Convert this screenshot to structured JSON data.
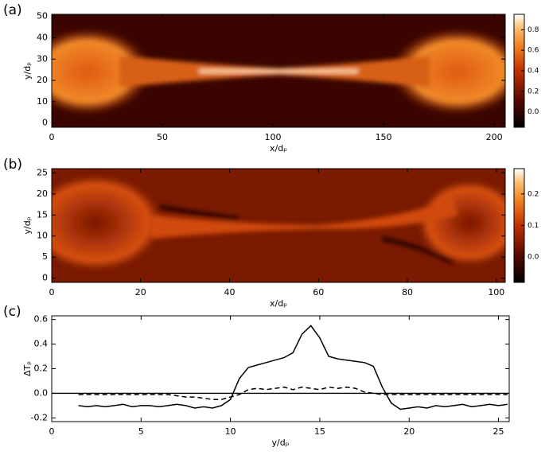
{
  "chart_data": [
    {
      "type": "heatmap",
      "panel_label": "(a)",
      "xlabel": "x/dₚ",
      "ylabel": "y/dₚ",
      "xlim": [
        0,
        205
      ],
      "xticks": [
        0,
        50,
        100,
        150,
        200
      ],
      "ylim": [
        -2,
        51
      ],
      "yticks": [
        0,
        10,
        20,
        30,
        40,
        50
      ],
      "colorbar": {
        "lim": [
          -0.15,
          0.95
        ],
        "ticks": [
          {
            "value": 0,
            "label": "0.0"
          },
          {
            "value": 0.2,
            "label": "0.2"
          },
          {
            "value": 0.4,
            "label": "0.4"
          },
          {
            "value": 0.6,
            "label": "0.6"
          },
          {
            "value": 0.8,
            "label": "0.8"
          }
        ]
      }
    },
    {
      "type": "heatmap",
      "panel_label": "(b)",
      "xlabel": "x/dₚ",
      "ylabel": "y/dₚ",
      "xlim": [
        0,
        102
      ],
      "xticks": [
        0,
        20,
        40,
        60,
        80,
        100
      ],
      "ylim": [
        -1,
        26
      ],
      "yticks": [
        0,
        5,
        10,
        15,
        20,
        25
      ],
      "colorbar": {
        "lim": [
          -0.08,
          0.28
        ],
        "ticks": [
          {
            "value": 0,
            "label": "0.0"
          },
          {
            "value": 0.1,
            "label": "0.1"
          },
          {
            "value": 0.2,
            "label": "0.2"
          }
        ]
      }
    },
    {
      "type": "line",
      "panel_label": "(c)",
      "xlabel": "y/dₚ",
      "ylabel": "ΔTₚ",
      "xlim": [
        0,
        25.6
      ],
      "xticks": [
        0,
        5,
        10,
        15,
        20,
        25
      ],
      "ylim": [
        -0.23,
        0.63
      ],
      "yticks": [
        {
          "value": -0.2,
          "label": "-0.2"
        },
        {
          "value": 0,
          "label": "0.0"
        },
        {
          "value": 0.2,
          "label": "0.2"
        },
        {
          "value": 0.4,
          "label": "0.4"
        },
        {
          "value": 0.6,
          "label": "0.6"
        }
      ],
      "hline": 0,
      "x": [
        1.5,
        2,
        2.5,
        3,
        3.5,
        4,
        4.5,
        5,
        5.5,
        6,
        6.5,
        7,
        7.5,
        8,
        8.5,
        9,
        9.5,
        10,
        10.5,
        11,
        11.5,
        12,
        12.5,
        13,
        13.5,
        14,
        14.5,
        15,
        15.5,
        16,
        16.5,
        17,
        17.5,
        18,
        18.5,
        19,
        19.5,
        20,
        20.5,
        21,
        21.5,
        22,
        22.5,
        23,
        23.5,
        24,
        24.5,
        25,
        25.5
      ],
      "series": [
        {
          "style": "solid",
          "color": "#000000",
          "values": [
            -0.1,
            -0.11,
            -0.1,
            -0.11,
            -0.1,
            -0.09,
            -0.11,
            -0.1,
            -0.1,
            -0.11,
            -0.1,
            -0.09,
            -0.1,
            -0.12,
            -0.11,
            -0.12,
            -0.1,
            -0.05,
            0.12,
            0.21,
            0.23,
            0.25,
            0.27,
            0.29,
            0.33,
            0.48,
            0.55,
            0.45,
            0.3,
            0.28,
            0.27,
            0.26,
            0.25,
            0.22,
            0.05,
            -0.08,
            -0.13,
            -0.12,
            -0.11,
            -0.12,
            -0.1,
            -0.11,
            -0.1,
            -0.09,
            -0.11,
            -0.1,
            -0.09,
            -0.1,
            -0.09
          ]
        },
        {
          "style": "dashed",
          "color": "#000000",
          "values": [
            -0.01,
            -0.01,
            -0.01,
            -0.01,
            -0.01,
            -0.01,
            -0.01,
            -0.01,
            -0.01,
            -0.01,
            -0.01,
            -0.02,
            -0.03,
            -0.03,
            -0.04,
            -0.05,
            -0.05,
            -0.03,
            -0.01,
            0.03,
            0.04,
            0.03,
            0.04,
            0.05,
            0.03,
            0.05,
            0.04,
            0.03,
            0.05,
            0.04,
            0.05,
            0.04,
            0.01,
            0.0,
            -0.01,
            -0.01,
            -0.01,
            -0.01,
            -0.01,
            -0.01,
            -0.01,
            -0.01,
            -0.01,
            -0.01,
            -0.01,
            -0.01,
            -0.01,
            -0.01,
            -0.01
          ]
        }
      ]
    }
  ]
}
